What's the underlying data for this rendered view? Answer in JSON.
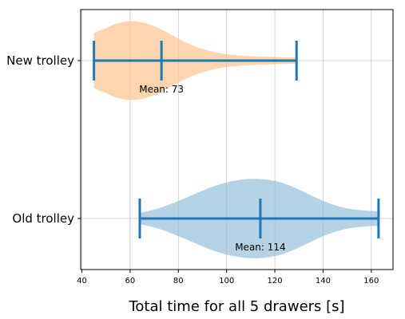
{
  "chart_data": {
    "type": "violin",
    "orientation": "horizontal",
    "xlabel": "Total time for all 5 drawers [s]",
    "ylabel": "",
    "xlim": [
      39.5,
      169
    ],
    "x_ticks": [
      40,
      60,
      80,
      100,
      120,
      140,
      160
    ],
    "grid": true,
    "series": [
      {
        "name": "New trolley",
        "min": 45,
        "max": 129,
        "mean": 73,
        "mean_label": "Mean: 73",
        "color": "#ffbf86",
        "profile": [
          [
            45,
            0.69
          ],
          [
            50,
            0.82
          ],
          [
            55,
            0.95
          ],
          [
            60,
            1.0
          ],
          [
            65,
            0.97
          ],
          [
            70,
            0.87
          ],
          [
            75,
            0.72
          ],
          [
            80,
            0.55
          ],
          [
            85,
            0.4
          ],
          [
            90,
            0.29
          ],
          [
            95,
            0.21
          ],
          [
            100,
            0.16
          ],
          [
            105,
            0.13
          ],
          [
            110,
            0.11
          ],
          [
            115,
            0.1
          ],
          [
            120,
            0.09
          ],
          [
            125,
            0.08
          ],
          [
            129,
            0.08
          ]
        ]
      },
      {
        "name": "Old trolley",
        "min": 64,
        "max": 163,
        "mean": 114,
        "mean_label": "Mean: 114",
        "color": "#8fbbd9",
        "profile": [
          [
            64,
            0.14
          ],
          [
            70,
            0.22
          ],
          [
            75,
            0.32
          ],
          [
            80,
            0.44
          ],
          [
            85,
            0.57
          ],
          [
            90,
            0.7
          ],
          [
            95,
            0.82
          ],
          [
            100,
            0.91
          ],
          [
            105,
            0.97
          ],
          [
            110,
            1.0
          ],
          [
            115,
            0.99
          ],
          [
            120,
            0.95
          ],
          [
            125,
            0.86
          ],
          [
            130,
            0.73
          ],
          [
            135,
            0.58
          ],
          [
            140,
            0.44
          ],
          [
            145,
            0.33
          ],
          [
            150,
            0.25
          ],
          [
            155,
            0.21
          ],
          [
            160,
            0.19
          ],
          [
            163,
            0.18
          ]
        ]
      }
    ],
    "line_color": "#1f77b4"
  }
}
